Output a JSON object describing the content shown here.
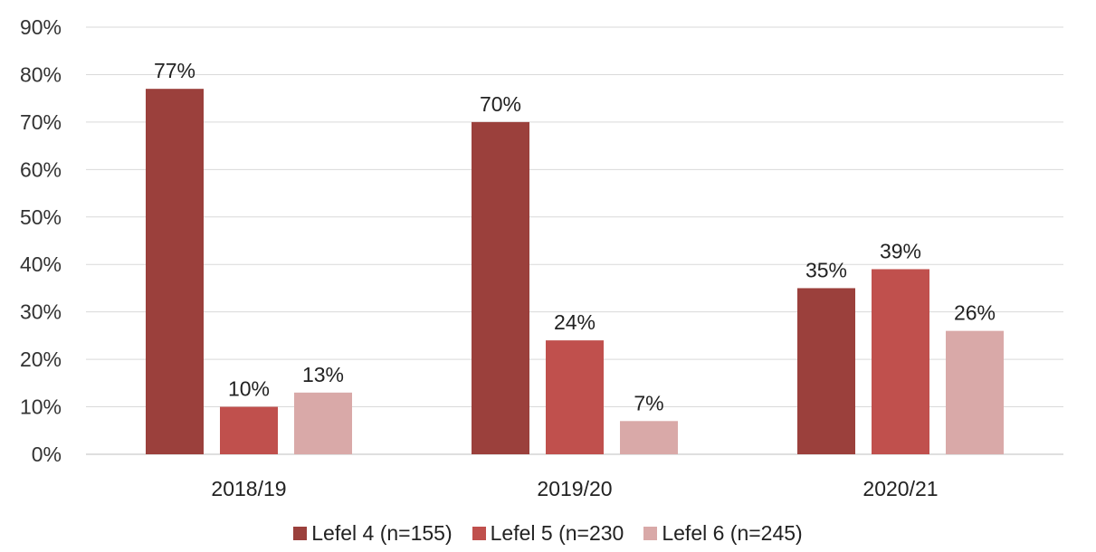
{
  "chart_data": {
    "type": "bar",
    "categories": [
      "2018/19",
      "2019/20",
      "2020/21"
    ],
    "series": [
      {
        "name": "Lefel 4 (n=155)",
        "values": [
          77,
          70,
          35
        ],
        "labels": [
          "77%",
          "70%",
          "35%"
        ],
        "color": "#9b403c"
      },
      {
        "name": "Lefel 5 (n=230",
        "values": [
          10,
          24,
          39
        ],
        "labels": [
          "10%",
          "24%",
          "39%"
        ],
        "color": "#c0504d"
      },
      {
        "name": "Lefel 6 (n=245)",
        "values": [
          13,
          7,
          26
        ],
        "labels": [
          "13%",
          "7%",
          "26%"
        ],
        "color": "#d9a9a8"
      }
    ],
    "y_ticks": [
      "0%",
      "10%",
      "20%",
      "30%",
      "40%",
      "50%",
      "60%",
      "70%",
      "80%",
      "90%"
    ],
    "ylim": [
      0,
      90
    ],
    "grid": true,
    "legend_position": "bottom"
  }
}
